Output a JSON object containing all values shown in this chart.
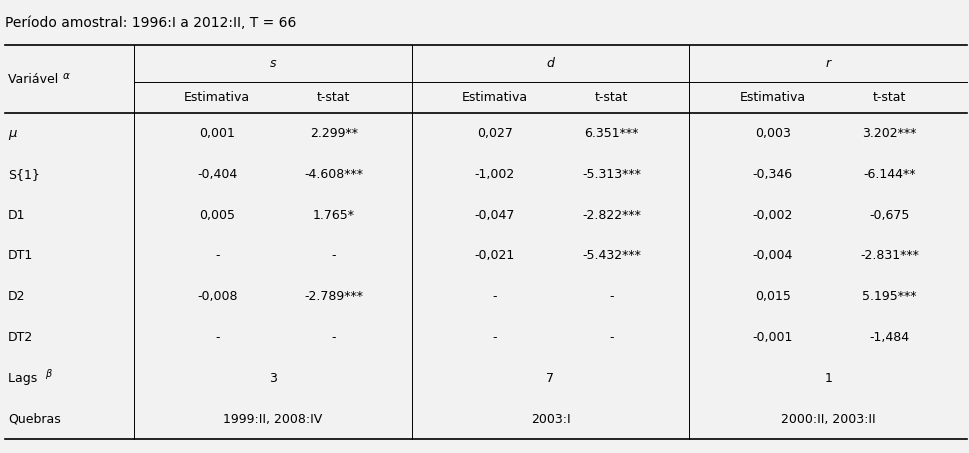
{
  "title": "Período amostral: 1996:I a 2012:II, T = 66",
  "background_color": "#f2f2f2",
  "col_groups": [
    "s",
    "d",
    "r"
  ],
  "row_labels": [
    "μ",
    "S{1}",
    "D1",
    "DT1",
    "D2",
    "DT2",
    "Lags β",
    "Quebras"
  ],
  "rows": [
    [
      "0,001",
      "2.299**",
      "0,027",
      "6.351***",
      "0,003",
      "3.202***"
    ],
    [
      "-0,404",
      "-4.608***",
      "-1,002",
      "-5.313***",
      "-0,346",
      "-6.144**"
    ],
    [
      "0,005",
      "1.765*",
      "-0,047",
      "-2.822***",
      "-0,002",
      "-0,675"
    ],
    [
      "-",
      "-",
      "-0,021",
      "-5.432***",
      "-0,004",
      "-2.831***"
    ],
    [
      "-0,008",
      "-2.789***",
      "-",
      "-",
      "0,015",
      "5.195***"
    ],
    [
      "-",
      "-",
      "-",
      "-",
      "-0,001",
      "-1,484"
    ],
    [
      "3",
      "",
      "7",
      "",
      "1",
      ""
    ],
    [
      "1999:II, 2008:IV",
      "",
      "2003:I",
      "",
      "2000:II, 2003:II",
      ""
    ]
  ],
  "font_size": 9.0,
  "header_font_size": 9.0,
  "title_font_size": 10.0
}
